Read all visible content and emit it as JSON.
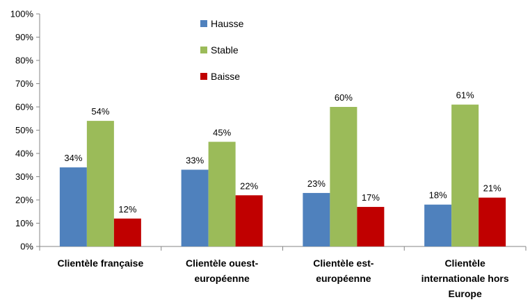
{
  "chart_data": {
    "type": "bar",
    "categories": [
      [
        "Clientèle française"
      ],
      [
        "Clientèle ouest-",
        "européenne"
      ],
      [
        "Clientèle est-",
        "européenne"
      ],
      [
        "Clientèle",
        "internationale hors",
        "Europe"
      ]
    ],
    "series": [
      {
        "name": "Hausse",
        "color": "#4F81BD",
        "values": [
          34,
          33,
          23,
          18
        ]
      },
      {
        "name": "Stable",
        "color": "#9BBB59",
        "values": [
          54,
          45,
          60,
          61
        ]
      },
      {
        "name": "Baisse",
        "color": "#C00000",
        "values": [
          12,
          22,
          17,
          21
        ]
      }
    ],
    "value_suffix": "%",
    "ylim": [
      0,
      100
    ],
    "yticks": [
      0,
      10,
      20,
      30,
      40,
      50,
      60,
      70,
      80,
      90,
      100
    ],
    "ytick_labels": [
      "0%",
      "10%",
      "20%",
      "30%",
      "40%",
      "50%",
      "60%",
      "70%",
      "80%",
      "90%",
      "100%"
    ],
    "grid": false,
    "legend_position": "top-center",
    "data_labels": true
  }
}
